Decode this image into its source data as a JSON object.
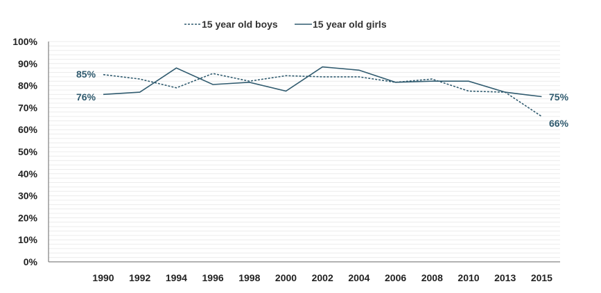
{
  "chart_data": {
    "type": "line",
    "categories": [
      "1990",
      "1992",
      "1994",
      "1996",
      "1998",
      "2000",
      "2002",
      "2004",
      "2006",
      "2008",
      "2010",
      "2013",
      "2015"
    ],
    "series": [
      {
        "name": "15 year old boys",
        "style": "dashed",
        "color": "#2f5a6e",
        "values": [
          85,
          83,
          79,
          85.5,
          82,
          84.5,
          84,
          84,
          81.5,
          83,
          77.5,
          77,
          66
        ]
      },
      {
        "name": "15 year old girls",
        "style": "solid",
        "color": "#2f5a6e",
        "values": [
          76,
          77,
          88,
          80.5,
          81.5,
          77.5,
          88.5,
          87,
          81.5,
          82,
          82,
          77,
          75
        ]
      }
    ],
    "y_ticks": [
      "0%",
      "10%",
      "20%",
      "30%",
      "40%",
      "50%",
      "60%",
      "70%",
      "80%",
      "90%",
      "100%"
    ],
    "ylim": [
      0,
      100
    ],
    "grid": true,
    "legend_position": "top-center",
    "data_labels": {
      "boys_start": "85%",
      "girls_start": "76%",
      "girls_end": "75%",
      "boys_end": "66%"
    },
    "label_color": "#2f5a6e"
  }
}
